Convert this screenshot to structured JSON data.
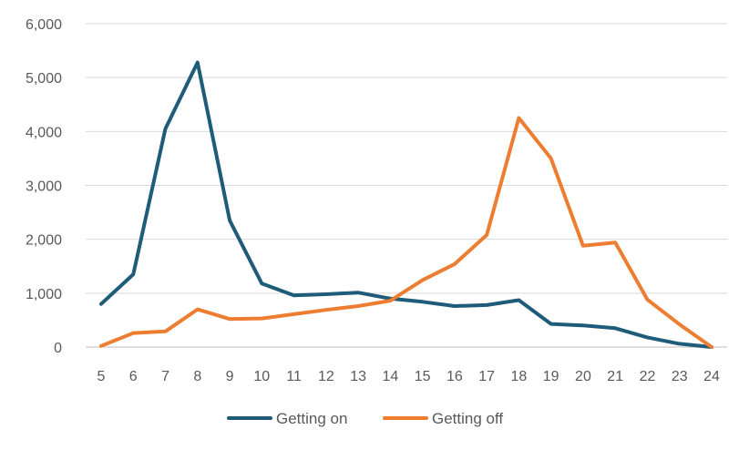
{
  "chart_data": {
    "type": "line",
    "x": [
      5,
      6,
      7,
      8,
      9,
      10,
      11,
      12,
      13,
      14,
      15,
      16,
      17,
      18,
      19,
      20,
      21,
      22,
      23,
      24
    ],
    "x_labels": [
      "5",
      "6",
      "7",
      "8",
      "9",
      "10",
      "11",
      "12",
      "13",
      "14",
      "15",
      "16",
      "17",
      "18",
      "19",
      "20",
      "21",
      "22",
      "23",
      "24"
    ],
    "series": [
      {
        "name": "Getting on",
        "color": "#1f5c7a",
        "values": [
          800,
          1350,
          4050,
          5280,
          2350,
          1180,
          960,
          980,
          1010,
          900,
          840,
          760,
          780,
          870,
          430,
          400,
          350,
          180,
          60,
          0
        ]
      },
      {
        "name": "Getting off",
        "color": "#ed7d31",
        "values": [
          20,
          260,
          290,
          700,
          520,
          530,
          610,
          690,
          760,
          860,
          1240,
          1540,
          2080,
          4250,
          3500,
          1880,
          1940,
          880,
          420,
          0
        ]
      }
    ],
    "ylim": [
      0,
      6000
    ],
    "y_ticks": [
      0,
      1000,
      2000,
      3000,
      4000,
      5000,
      6000
    ],
    "y_tick_labels": [
      "0",
      "1,000",
      "2,000",
      "3,000",
      "4,000",
      "5,000",
      "6,000"
    ],
    "grid": true,
    "legend": "bottom-center"
  }
}
